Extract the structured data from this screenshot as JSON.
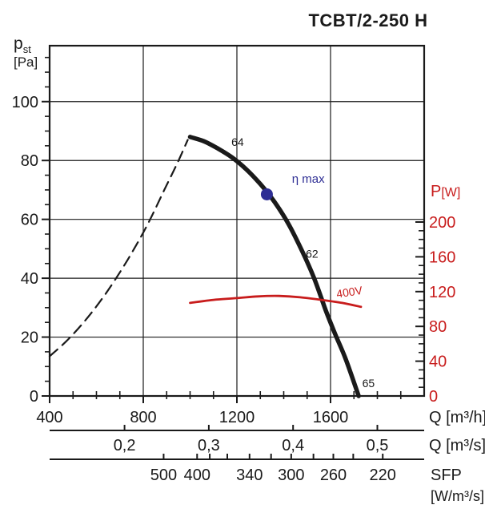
{
  "title": "TCBT/2-250 H",
  "chart_data": {
    "type": "line",
    "title": "TCBT/2-250 H",
    "colors": {
      "black": "#1a1a1a",
      "red": "#c81c1c",
      "navy": "#2e2e94"
    },
    "axes": {
      "y_left": {
        "symbol": "p",
        "symbol_sub": "st",
        "unit": "[Pa]",
        "range": [
          0,
          119
        ],
        "ticks": [
          0,
          20,
          40,
          60,
          80,
          100
        ],
        "minor_step": 5,
        "grid": true
      },
      "y_right": {
        "label": "P",
        "unit": "[W]",
        "color": "#c81c1c",
        "range": [
          0,
          200
        ],
        "ticks": [
          0,
          40,
          80,
          120,
          160,
          200
        ],
        "minor_step": 10
      },
      "x_flow_m3h": {
        "label": "Q [m³/h]",
        "range": [
          400,
          2000
        ],
        "ticks": [
          400,
          800,
          1200,
          1600
        ],
        "minor_step": 100,
        "grid_ticks": [
          800,
          1200,
          1600
        ]
      },
      "x_flow_m3s": {
        "label": "Q [m³/s]",
        "ticks": [
          {
            "label": "0,2",
            "value": 0.2
          },
          {
            "label": "0,3",
            "value": 0.3
          },
          {
            "label": "0,4",
            "value": 0.4
          },
          {
            "label": "0,5",
            "value": 0.5
          }
        ]
      },
      "x_sfp": {
        "label": "SFP",
        "unit": "[W/m³/s]",
        "ticks": [
          {
            "label": "500",
            "q": 887
          },
          {
            "label": "400",
            "q": 1030
          },
          {
            "label": "",
            "q": 1084
          },
          {
            "label": "",
            "q": 1159
          },
          {
            "label": "340",
            "q": 1254
          },
          {
            "label": "",
            "q": 1346
          },
          {
            "label": "300",
            "q": 1432
          },
          {
            "label": "",
            "q": 1527
          },
          {
            "label": "260",
            "q": 1612
          },
          {
            "label": "",
            "q": 1697
          },
          {
            "label": "220",
            "q": 1823
          }
        ]
      }
    },
    "series": [
      {
        "name": "fan-curve",
        "axis": "left",
        "color": "#1a1a1a",
        "width": 5.5,
        "style": "solid",
        "points": [
          [
            1000,
            88
          ],
          [
            1060,
            86.5
          ],
          [
            1120,
            84
          ],
          [
            1180,
            81
          ],
          [
            1240,
            77
          ],
          [
            1300,
            72
          ],
          [
            1360,
            66
          ],
          [
            1420,
            58.5
          ],
          [
            1480,
            49
          ],
          [
            1530,
            40
          ],
          [
            1580,
            29
          ],
          [
            1620,
            21
          ],
          [
            1665,
            12.5
          ],
          [
            1720,
            0
          ]
        ]
      },
      {
        "name": "fan-curve-extension",
        "axis": "left",
        "color": "#1a1a1a",
        "width": 2.2,
        "style": "dashed",
        "points": [
          [
            400,
            13.5
          ],
          [
            470,
            18.5
          ],
          [
            540,
            24.5
          ],
          [
            610,
            31.5
          ],
          [
            680,
            39.5
          ],
          [
            750,
            48.5
          ],
          [
            820,
            58.5
          ],
          [
            890,
            70
          ],
          [
            945,
            79
          ],
          [
            990,
            87
          ]
        ]
      },
      {
        "name": "power-curve-400V",
        "axis": "right",
        "color": "#c81c1c",
        "width": 2.8,
        "style": "solid",
        "points": [
          [
            1000,
            107
          ],
          [
            1100,
            110.5
          ],
          [
            1200,
            112.5
          ],
          [
            1290,
            114.5
          ],
          [
            1380,
            115
          ],
          [
            1470,
            113.5
          ],
          [
            1560,
            110.5
          ],
          [
            1650,
            107
          ],
          [
            1730,
            102.5
          ]
        ]
      }
    ],
    "marker": {
      "name": "eta-max-point",
      "q": 1328,
      "p": 68.5,
      "radius": 7.5,
      "color": "#2e2e94",
      "label": "η max",
      "label_q": 1435,
      "label_p": 72.5
    },
    "annotations": [
      {
        "text": "64",
        "q": 1203,
        "p": 85,
        "color": "#1a1a1a",
        "rotate": 0
      },
      {
        "text": "62",
        "q": 1521,
        "p": 47,
        "color": "#1a1a1a",
        "rotate": 0
      },
      {
        "text": "65",
        "q": 1762,
        "p": 3,
        "color": "#1a1a1a",
        "rotate": 0
      },
      {
        "text": "400V",
        "q": 1683,
        "w": 115,
        "color": "#c81c1c",
        "rotate": -9
      }
    ]
  }
}
